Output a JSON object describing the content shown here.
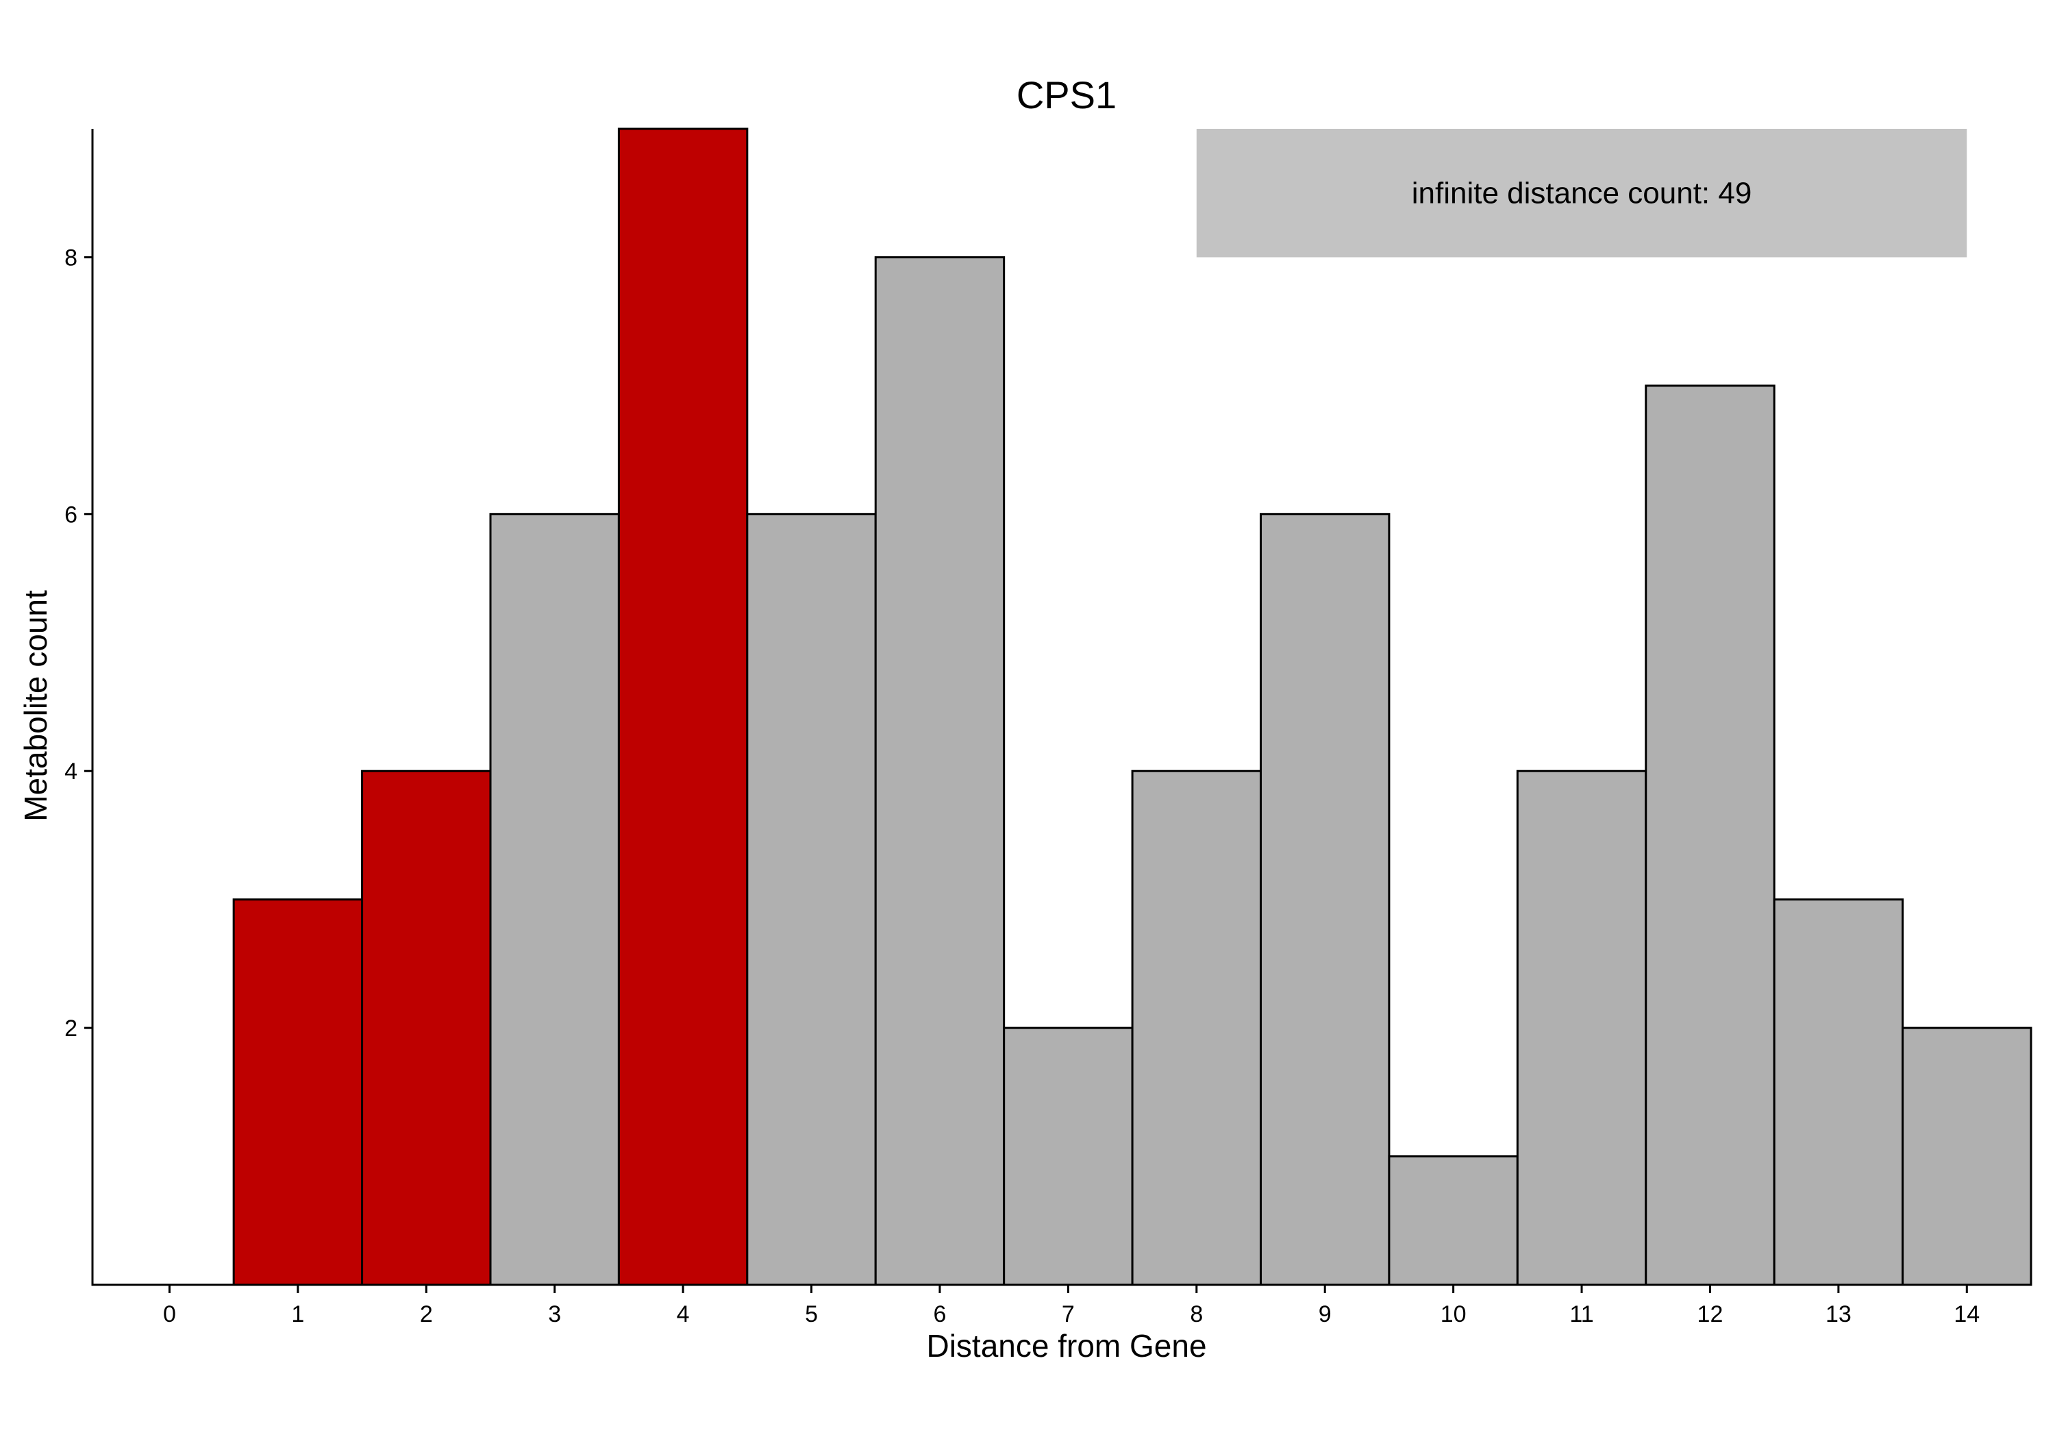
{
  "chart_data": {
    "type": "bar",
    "title": "CPS1",
    "xlabel": "Distance from Gene",
    "ylabel": "Metabolite count",
    "x": [
      0,
      1,
      2,
      3,
      4,
      5,
      6,
      7,
      8,
      9,
      10,
      11,
      12,
      13,
      14
    ],
    "values": [
      0,
      3,
      4,
      6,
      9,
      6,
      8,
      2,
      4,
      6,
      1,
      4,
      7,
      3,
      2
    ],
    "highlighted": [
      1,
      2,
      4
    ],
    "colors": {
      "highlight": "#BE0000",
      "default": "#B0B0B0",
      "annotation_box": "#C3C3C3"
    },
    "xlim": [
      -0.6,
      14.5
    ],
    "ylim": [
      0,
      9
    ],
    "yticks": [
      2,
      4,
      6,
      8
    ],
    "xticks": [
      0,
      1,
      2,
      3,
      4,
      5,
      6,
      7,
      8,
      9,
      10,
      11,
      12,
      13,
      14
    ],
    "grid": false,
    "annotation": {
      "text": "infinite distance count: 49",
      "x_range": [
        8,
        14
      ],
      "y_range": [
        8,
        9
      ]
    }
  }
}
